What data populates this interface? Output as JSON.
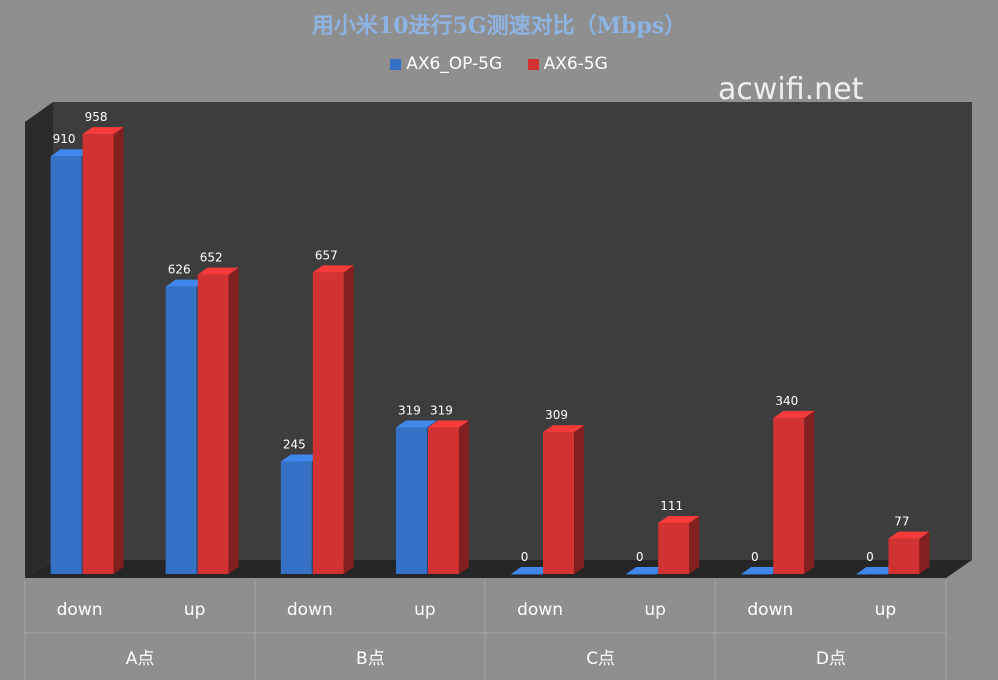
{
  "chart_data": {
    "type": "bar",
    "title": "用小米10进行5G测速对比（Mbps）",
    "groups": [
      "A点",
      "B点",
      "C点",
      "D点"
    ],
    "categories": [
      "down",
      "up",
      "down",
      "up",
      "down",
      "up",
      "down",
      "up"
    ],
    "series": [
      {
        "name": "AX6_OP-5G",
        "color": "#3572c6",
        "values": [
          910,
          626,
          245,
          319,
          0,
          0,
          0,
          0
        ]
      },
      {
        "name": "AX6-5G",
        "color": "#d13232",
        "values": [
          958,
          652,
          657,
          319,
          309,
          111,
          340,
          77
        ]
      }
    ],
    "ylim": [
      0,
      1000
    ],
    "legend": "top-center",
    "grid": false
  },
  "watermark": "acwifi.net"
}
